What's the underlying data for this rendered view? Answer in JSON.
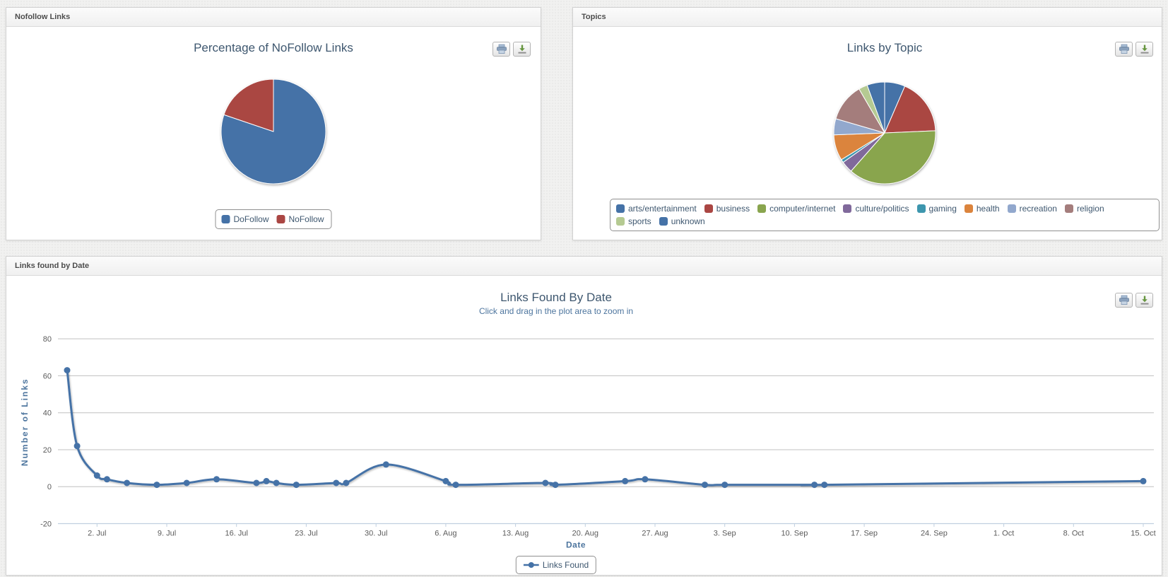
{
  "panels": {
    "nofollow": {
      "header": "Nofollow Links"
    },
    "topics": {
      "header": "Topics"
    },
    "by_date": {
      "header": "Links found by Date"
    }
  },
  "export": {
    "print_icon": "printer-icon",
    "download_icon": "download-icon"
  },
  "colors": {
    "accent_blue": "#4572A7",
    "red": "#AA4643",
    "green": "#89A54E",
    "purple": "#80699B",
    "teal": "#3D96AE",
    "orange": "#DB843D",
    "light_blue": "#92A8CD",
    "mauve": "#A47D7C",
    "light_green": "#B5CA92",
    "title_text": "#3E576F",
    "axis_title_text": "#4D759E",
    "grid": "#C0C0C0",
    "axis_line": "#C0D0E0"
  },
  "chart_data": [
    {
      "id": "nofollow_pie",
      "type": "pie",
      "title": "Percentage of NoFollow Links",
      "legend_position": "bottom",
      "slices": [
        {
          "label": "DoFollow",
          "value": 80.2,
          "color": "#4572A7"
        },
        {
          "label": "NoFollow",
          "value": 19.8,
          "color": "#AA4643"
        }
      ]
    },
    {
      "id": "topics_pie",
      "type": "pie",
      "title": "Links by Topic",
      "legend_position": "bottom",
      "slices": [
        {
          "label": "arts/entertainment",
          "value": 6.5,
          "color": "#4572A7"
        },
        {
          "label": "business",
          "value": 17.8,
          "color": "#AA4643"
        },
        {
          "label": "computer/internet",
          "value": 37.2,
          "color": "#89A54E"
        },
        {
          "label": "culture/politics",
          "value": 3.7,
          "color": "#80699B"
        },
        {
          "label": "gaming",
          "value": 1.0,
          "color": "#3D96AE"
        },
        {
          "label": "health",
          "value": 8.2,
          "color": "#DB843D"
        },
        {
          "label": "recreation",
          "value": 5.1,
          "color": "#92A8CD"
        },
        {
          "label": "religion",
          "value": 12.1,
          "color": "#A47D7C"
        },
        {
          "label": "sports",
          "value": 2.8,
          "color": "#B5CA92"
        },
        {
          "label": "unknown",
          "value": 5.6,
          "color": "#4572A7"
        }
      ]
    },
    {
      "id": "links_by_date",
      "type": "line",
      "title": "Links Found By Date",
      "subtitle": "Click and drag in the plot area to zoom in",
      "xlabel": "Date",
      "ylabel": "Number of Links",
      "legend": [
        "Links Found"
      ],
      "color": "#4572A7",
      "ylim": [
        -20,
        90
      ],
      "yticks": [
        -20,
        0,
        20,
        40,
        60,
        80
      ],
      "grid": "horizontal-only",
      "legend_position": "bottom",
      "x_ticks": [
        {
          "day": 3,
          "label": "2. Jul"
        },
        {
          "day": 10,
          "label": "9. Jul"
        },
        {
          "day": 17,
          "label": "16. Jul"
        },
        {
          "day": 24,
          "label": "23. Jul"
        },
        {
          "day": 31,
          "label": "30. Jul"
        },
        {
          "day": 38,
          "label": "6. Aug"
        },
        {
          "day": 45,
          "label": "13. Aug"
        },
        {
          "day": 52,
          "label": "20. Aug"
        },
        {
          "day": 59,
          "label": "27. Aug"
        },
        {
          "day": 66,
          "label": "3. Sep"
        },
        {
          "day": 73,
          "label": "10. Sep"
        },
        {
          "day": 80,
          "label": "17. Sep"
        },
        {
          "day": 87,
          "label": "24. Sep"
        },
        {
          "day": 94,
          "label": "1. Oct"
        },
        {
          "day": 101,
          "label": "8. Oct"
        },
        {
          "day": 108,
          "label": "15. Oct"
        }
      ],
      "points": [
        {
          "date": "29 Jun",
          "day": 0,
          "value": 63
        },
        {
          "date": "30 Jun",
          "day": 1,
          "value": 22
        },
        {
          "date": "2 Jul",
          "day": 3,
          "value": 6
        },
        {
          "date": "3 Jul",
          "day": 4,
          "value": 4
        },
        {
          "date": "5 Jul",
          "day": 6,
          "value": 2
        },
        {
          "date": "8 Jul",
          "day": 9,
          "value": 1
        },
        {
          "date": "11 Jul",
          "day": 12,
          "value": 2
        },
        {
          "date": "14 Jul",
          "day": 15,
          "value": 4
        },
        {
          "date": "18 Jul",
          "day": 19,
          "value": 2
        },
        {
          "date": "19 Jul",
          "day": 20,
          "value": 3
        },
        {
          "date": "20 Jul",
          "day": 21,
          "value": 2
        },
        {
          "date": "22 Jul",
          "day": 23,
          "value": 1
        },
        {
          "date": "26 Jul",
          "day": 27,
          "value": 2
        },
        {
          "date": "27 Jul",
          "day": 28,
          "value": 2
        },
        {
          "date": "31 Jul",
          "day": 32,
          "value": 12
        },
        {
          "date": "6 Aug",
          "day": 38,
          "value": 3
        },
        {
          "date": "7 Aug",
          "day": 39,
          "value": 1
        },
        {
          "date": "16 Aug",
          "day": 48,
          "value": 2
        },
        {
          "date": "17 Aug",
          "day": 49,
          "value": 1
        },
        {
          "date": "24 Aug",
          "day": 56,
          "value": 3
        },
        {
          "date": "26 Aug",
          "day": 58,
          "value": 4
        },
        {
          "date": "1 Sep",
          "day": 64,
          "value": 1
        },
        {
          "date": "3 Sep",
          "day": 66,
          "value": 1
        },
        {
          "date": "12 Sep",
          "day": 75,
          "value": 1
        },
        {
          "date": "13 Sep",
          "day": 76,
          "value": 1
        },
        {
          "date": "15 Oct",
          "day": 108,
          "value": 3
        }
      ]
    }
  ]
}
